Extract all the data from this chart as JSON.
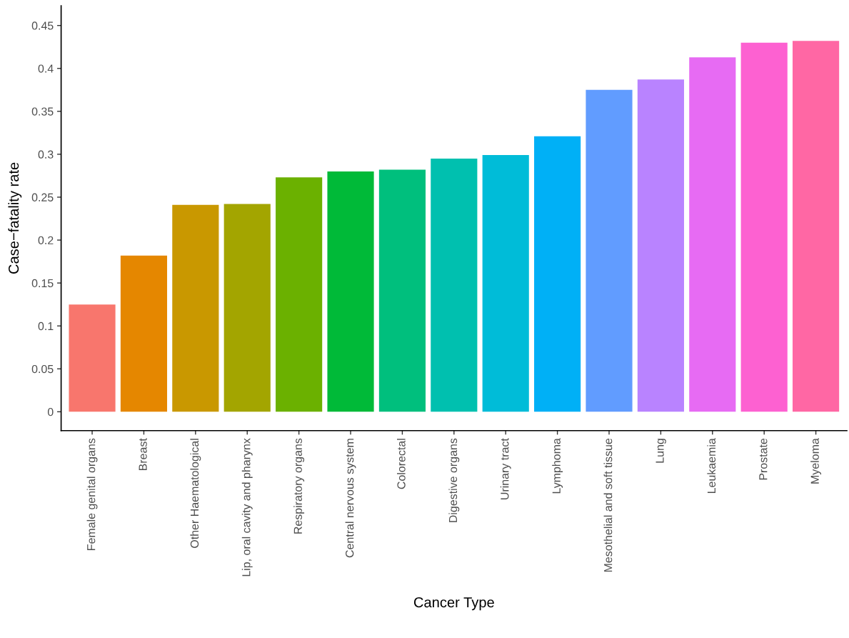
{
  "chart_data": {
    "type": "bar",
    "xlabel": "Cancer Type",
    "ylabel": "Case−fatality rate",
    "categories": [
      "Female genital organs",
      "Breast",
      "Other Haematological",
      "Lip, oral cavity and pharynx",
      "Respiratory organs",
      "Central nervous system",
      "Colorectal",
      "Digestive organs",
      "Urinary tract",
      "Lymphoma",
      "Mesothelial and soft tissue",
      "Lung",
      "Leukaemia",
      "Prostate",
      "Myeloma"
    ],
    "values": [
      0.125,
      0.182,
      0.241,
      0.242,
      0.273,
      0.28,
      0.282,
      0.295,
      0.299,
      0.321,
      0.375,
      0.387,
      0.413,
      0.43,
      0.432
    ],
    "colors": [
      "#F8766D",
      "#E58700",
      "#C99800",
      "#A3A500",
      "#6BB100",
      "#00BA38",
      "#00BF7D",
      "#00C0AF",
      "#00BCD8",
      "#00B0F6",
      "#619CFF",
      "#B983FF",
      "#E76BF3",
      "#FD61D1",
      "#FF67A4"
    ],
    "ylim": [
      -0.022,
      0.473
    ],
    "yticks": [
      0,
      0.05,
      0.1,
      0.15,
      0.2,
      0.25,
      0.3,
      0.35,
      0.4,
      0.45
    ],
    "grid": false,
    "legend": false
  }
}
